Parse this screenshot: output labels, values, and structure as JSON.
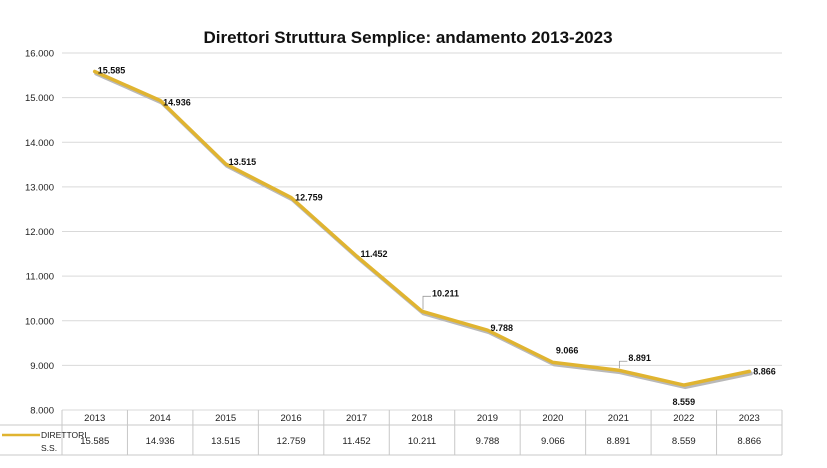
{
  "chart_data": {
    "type": "line",
    "title": "Direttori Struttura Semplice: andamento 2013-2023",
    "categories": [
      "2013",
      "2014",
      "2015",
      "2016",
      "2017",
      "2018",
      "2019",
      "2020",
      "2021",
      "2022",
      "2023"
    ],
    "series": [
      {
        "name": "DIRETTORI S.S.",
        "values": [
          15585,
          14936,
          13515,
          12759,
          11452,
          10211,
          9788,
          9066,
          8891,
          8559,
          8866
        ],
        "labels": [
          "15.585",
          "14.936",
          "13.515",
          "12.759",
          "11.452",
          "10.211",
          "9.788",
          "9.066",
          "8.891",
          "8.559",
          "8.866"
        ],
        "color": "#e0b430"
      }
    ],
    "ylim": [
      8000,
      16000
    ],
    "yticks": [
      8000,
      9000,
      10000,
      11000,
      12000,
      13000,
      14000,
      15000,
      16000
    ],
    "ytick_labels": [
      "8.000",
      "9.000",
      "10.000",
      "11.000",
      "12.000",
      "13.000",
      "14.000",
      "15.000",
      "16.000"
    ],
    "grid": true,
    "data_table": true,
    "legend_label_lines": [
      "DIRETTORI",
      "S.S."
    ]
  }
}
